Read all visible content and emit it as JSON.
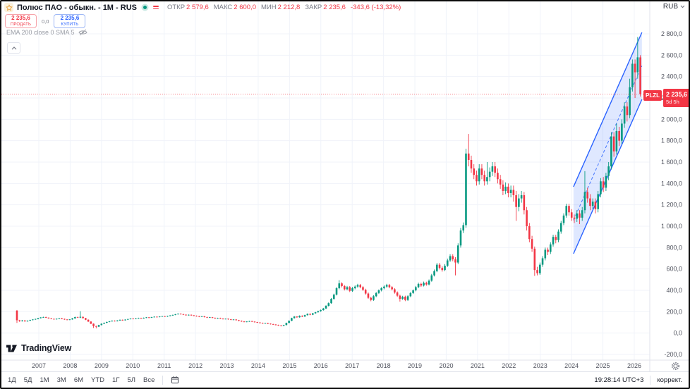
{
  "header": {
    "symbol_title": "Полюс ПАО - обыкн. - 1M - RUS",
    "ohlc": {
      "open_label": "ОТКР",
      "open": "2 579,6",
      "high_label": "МАКС",
      "high": "2 600,0",
      "low_label": "МИН",
      "low": "2 212,8",
      "close_label": "ЗАКР",
      "close": "2 235,6",
      "change": "-343,6 (-13,32%)"
    },
    "sell": {
      "price": "2 235,6",
      "label": "ПРОДАТЬ"
    },
    "spread": "0,0",
    "buy": {
      "price": "2 235,6",
      "label": "КУПИТЬ"
    },
    "indicator": "EMA 200 close 0 SMA 5"
  },
  "axes": {
    "currency": "RUB",
    "price_tick_labels": [
      "2 800,0",
      "2 600,0",
      "2 400,0",
      "2 200,0",
      "2 000,0",
      "1 800,0",
      "1 600,0",
      "1 400,0",
      "1 200,0",
      "1 000,0",
      "800,0",
      "600,0",
      "400,0",
      "200,0",
      "0,0",
      "-200,0"
    ]
  },
  "price_label": {
    "ticker": "PLZL",
    "price": "2 235,6",
    "countdown": "5d 5h"
  },
  "logo": {
    "text": "TradingView"
  },
  "footer": {
    "ranges": [
      "1Д",
      "5Д",
      "1М",
      "3М",
      "6М",
      "YTD",
      "1Г",
      "5Л",
      "Все"
    ],
    "time": "19:28:14 UTC+3",
    "adjust": "коррект."
  },
  "chart_data": {
    "type": "candlestick",
    "symbol": "PLZL",
    "title": "Полюс ПАО - обыкн. - 1M - RUS",
    "timeframe": "1M",
    "currency": "RUB",
    "start_month": "2006-05",
    "y_axis": {
      "min": -200,
      "max": 2800,
      "tick_step": 200,
      "ticks": [
        2800,
        2600,
        2400,
        2200,
        2000,
        1800,
        1600,
        1400,
        1200,
        1000,
        800,
        600,
        400,
        200,
        0,
        -200
      ]
    },
    "x_axis": {
      "years": [
        2007,
        2008,
        2009,
        2010,
        2011,
        2012,
        2013,
        2014,
        2015,
        2016,
        2017,
        2018,
        2019,
        2020,
        2021,
        2022,
        2023,
        2024,
        2025,
        2026
      ]
    },
    "current_price": 2235.6,
    "last_candle": {
      "open": 2579.6,
      "high": 2600.0,
      "low": 2212.8,
      "close": 2235.6,
      "change": -343.6,
      "change_pct": -13.32
    },
    "channel": {
      "style": "parallel-channel",
      "dashed_midline": true,
      "start_index": 210.7,
      "end_index": 236.6,
      "lower_start_price": 743,
      "lower_end_price": 2187,
      "upper_start_price": 1369,
      "upper_end_price": 2813
    },
    "colors": {
      "up": "#089981",
      "down": "#f23645",
      "channel": "#2962ff",
      "channel_fill": "rgba(41,98,255,0.15)",
      "grid": "#f0f3fa",
      "axis_text": "#50535e",
      "separator": "#e0e3eb",
      "current_line": "#f23645",
      "price_label_bg": "#f23645"
    },
    "candles": [
      [
        210,
        216,
        95,
        120
      ],
      [
        120,
        124,
        105,
        112
      ],
      [
        112,
        122,
        108,
        118
      ],
      [
        118,
        121,
        106,
        110
      ],
      [
        110,
        119,
        107,
        116
      ],
      [
        116,
        125,
        113,
        122
      ],
      [
        122,
        130,
        119,
        127
      ],
      [
        127,
        135,
        124,
        132
      ],
      [
        132,
        143,
        129,
        140
      ],
      [
        140,
        149,
        137,
        146
      ],
      [
        146,
        153,
        143,
        150
      ],
      [
        150,
        153,
        141,
        144
      ],
      [
        144,
        147,
        135,
        138
      ],
      [
        138,
        141,
        130,
        133
      ],
      [
        133,
        136,
        126,
        129
      ],
      [
        129,
        137,
        126,
        134
      ],
      [
        134,
        142,
        131,
        139
      ],
      [
        139,
        142,
        130,
        133
      ],
      [
        133,
        136,
        124,
        127
      ],
      [
        127,
        130,
        120,
        123
      ],
      [
        123,
        131,
        120,
        128
      ],
      [
        128,
        141,
        125,
        138
      ],
      [
        138,
        153,
        135,
        150
      ],
      [
        150,
        153,
        141,
        145
      ],
      [
        145,
        205,
        140,
        152
      ],
      [
        152,
        155,
        136,
        140
      ],
      [
        140,
        143,
        121,
        125
      ],
      [
        125,
        128,
        104,
        108
      ],
      [
        108,
        111,
        84,
        88
      ],
      [
        88,
        91,
        48,
        65
      ],
      [
        65,
        70,
        45,
        60
      ],
      [
        60,
        78,
        56,
        75
      ],
      [
        75,
        91,
        72,
        88
      ],
      [
        88,
        99,
        85,
        96
      ],
      [
        96,
        107,
        93,
        104
      ],
      [
        104,
        113,
        101,
        110
      ],
      [
        110,
        119,
        107,
        116
      ],
      [
        116,
        119,
        108,
        112
      ],
      [
        112,
        121,
        109,
        118
      ],
      [
        118,
        127,
        115,
        124
      ],
      [
        124,
        127,
        116,
        120
      ],
      [
        120,
        129,
        117,
        126
      ],
      [
        126,
        134,
        123,
        131
      ],
      [
        131,
        139,
        128,
        136
      ],
      [
        136,
        139,
        129,
        133
      ],
      [
        133,
        140,
        130,
        137
      ],
      [
        137,
        144,
        134,
        141
      ],
      [
        141,
        144,
        134,
        138
      ],
      [
        138,
        146,
        135,
        143
      ],
      [
        143,
        150,
        140,
        147
      ],
      [
        147,
        150,
        140,
        144
      ],
      [
        144,
        152,
        141,
        149
      ],
      [
        149,
        156,
        146,
        153
      ],
      [
        153,
        156,
        146,
        150
      ],
      [
        150,
        158,
        147,
        155
      ],
      [
        155,
        161,
        152,
        158
      ],
      [
        158,
        161,
        151,
        155
      ],
      [
        155,
        163,
        152,
        160
      ],
      [
        160,
        168,
        157,
        165
      ],
      [
        165,
        173,
        162,
        170
      ],
      [
        170,
        179,
        167,
        176
      ],
      [
        176,
        184,
        173,
        181
      ],
      [
        181,
        184,
        173,
        177
      ],
      [
        177,
        180,
        168,
        172
      ],
      [
        172,
        175,
        163,
        167
      ],
      [
        167,
        174,
        164,
        171
      ],
      [
        171,
        174,
        162,
        166
      ],
      [
        166,
        169,
        158,
        162
      ],
      [
        162,
        165,
        154,
        158
      ],
      [
        158,
        161,
        149,
        153
      ],
      [
        153,
        160,
        150,
        157
      ],
      [
        157,
        160,
        146,
        150
      ],
      [
        150,
        153,
        141,
        145
      ],
      [
        145,
        151,
        142,
        148
      ],
      [
        148,
        151,
        139,
        143
      ],
      [
        143,
        146,
        134,
        138
      ],
      [
        138,
        144,
        135,
        141
      ],
      [
        141,
        144,
        132,
        136
      ],
      [
        136,
        139,
        127,
        131
      ],
      [
        131,
        137,
        128,
        134
      ],
      [
        134,
        137,
        125,
        129
      ],
      [
        129,
        132,
        120,
        124
      ],
      [
        124,
        130,
        121,
        127
      ],
      [
        127,
        130,
        117,
        121
      ],
      [
        121,
        124,
        111,
        115
      ],
      [
        115,
        118,
        105,
        109
      ],
      [
        109,
        112,
        100,
        104
      ],
      [
        104,
        111,
        101,
        108
      ],
      [
        108,
        115,
        105,
        112
      ],
      [
        112,
        115,
        103,
        107
      ],
      [
        107,
        110,
        98,
        102
      ],
      [
        102,
        105,
        95,
        99
      ],
      [
        99,
        102,
        91,
        95
      ],
      [
        95,
        98,
        87,
        91
      ],
      [
        91,
        97,
        88,
        94
      ],
      [
        94,
        97,
        84,
        88
      ],
      [
        88,
        91,
        80,
        84
      ],
      [
        84,
        87,
        76,
        80
      ],
      [
        80,
        83,
        72,
        76
      ],
      [
        76,
        79,
        68,
        72
      ],
      [
        72,
        75,
        63,
        68
      ],
      [
        68,
        78,
        65,
        75
      ],
      [
        75,
        98,
        72,
        95
      ],
      [
        95,
        119,
        92,
        115
      ],
      [
        115,
        144,
        112,
        140
      ],
      [
        140,
        159,
        136,
        155
      ],
      [
        155,
        158,
        143,
        148
      ],
      [
        148,
        166,
        144,
        162
      ],
      [
        162,
        166,
        150,
        155
      ],
      [
        155,
        172,
        151,
        168
      ],
      [
        168,
        184,
        164,
        180
      ],
      [
        180,
        184,
        167,
        172
      ],
      [
        172,
        189,
        168,
        185
      ],
      [
        185,
        199,
        181,
        195
      ],
      [
        195,
        210,
        191,
        205
      ],
      [
        205,
        220,
        200,
        215
      ],
      [
        215,
        236,
        210,
        230
      ],
      [
        230,
        261,
        225,
        255
      ],
      [
        255,
        287,
        249,
        280
      ],
      [
        280,
        328,
        274,
        320
      ],
      [
        320,
        369,
        313,
        360
      ],
      [
        360,
        430,
        352,
        420
      ],
      [
        420,
        495,
        410,
        465
      ],
      [
        465,
        475,
        428,
        440
      ],
      [
        440,
        450,
        399,
        410
      ],
      [
        410,
        441,
        401,
        430
      ],
      [
        430,
        440,
        384,
        395
      ],
      [
        395,
        431,
        386,
        420
      ],
      [
        420,
        446,
        410,
        435
      ],
      [
        435,
        461,
        425,
        450
      ],
      [
        450,
        460,
        419,
        430
      ],
      [
        430,
        440,
        394,
        405
      ],
      [
        405,
        415,
        359,
        370
      ],
      [
        370,
        380,
        320,
        330
      ],
      [
        330,
        340,
        298,
        310
      ],
      [
        310,
        354,
        302,
        345
      ],
      [
        345,
        384,
        336,
        375
      ],
      [
        375,
        409,
        366,
        400
      ],
      [
        400,
        430,
        390,
        420
      ],
      [
        420,
        446,
        410,
        435
      ],
      [
        435,
        461,
        424,
        450
      ],
      [
        450,
        460,
        419,
        430
      ],
      [
        430,
        440,
        399,
        410
      ],
      [
        410,
        420,
        369,
        380
      ],
      [
        380,
        390,
        339,
        350
      ],
      [
        350,
        360,
        295,
        320
      ],
      [
        320,
        349,
        311,
        340
      ],
      [
        340,
        350,
        299,
        310
      ],
      [
        310,
        354,
        301,
        345
      ],
      [
        345,
        384,
        336,
        375
      ],
      [
        375,
        409,
        366,
        400
      ],
      [
        400,
        441,
        391,
        430
      ],
      [
        430,
        472,
        420,
        460
      ],
      [
        460,
        471,
        433,
        445
      ],
      [
        445,
        482,
        436,
        470
      ],
      [
        470,
        481,
        443,
        455
      ],
      [
        455,
        502,
        446,
        490
      ],
      [
        490,
        554,
        481,
        540
      ],
      [
        540,
        595,
        530,
        580
      ],
      [
        580,
        656,
        570,
        640
      ],
      [
        640,
        656,
        595,
        610
      ],
      [
        610,
        625,
        575,
        590
      ],
      [
        590,
        646,
        580,
        630
      ],
      [
        630,
        697,
        619,
        680
      ],
      [
        680,
        738,
        666,
        720
      ],
      [
        720,
        738,
        672,
        690
      ],
      [
        690,
        710,
        540,
        660
      ],
      [
        660,
        840,
        645,
        820
      ],
      [
        820,
        984,
        800,
        960
      ],
      [
        960,
        1035,
        936,
        1010
      ],
      [
        1010,
        1725,
        985,
        1680
      ],
      [
        1680,
        1863,
        1560,
        1620
      ],
      [
        1620,
        1660,
        1500,
        1540
      ],
      [
        1540,
        1580,
        1440,
        1480
      ],
      [
        1480,
        1520,
        1380,
        1420
      ],
      [
        1420,
        1580,
        1390,
        1540
      ],
      [
        1540,
        1580,
        1440,
        1480
      ],
      [
        1480,
        1520,
        1380,
        1420
      ],
      [
        1420,
        1600,
        1390,
        1460
      ],
      [
        1460,
        1550,
        1420,
        1510
      ],
      [
        1510,
        1600,
        1470,
        1560
      ],
      [
        1560,
        1600,
        1460,
        1500
      ],
      [
        1500,
        1540,
        1400,
        1440
      ],
      [
        1440,
        1480,
        1350,
        1390
      ],
      [
        1390,
        1430,
        1290,
        1330
      ],
      [
        1330,
        1410,
        1300,
        1370
      ],
      [
        1370,
        1400,
        1270,
        1310
      ],
      [
        1310,
        1380,
        1270,
        1340
      ],
      [
        1340,
        1380,
        1230,
        1290
      ],
      [
        1290,
        1330,
        1050,
        1180
      ],
      [
        1180,
        1300,
        1140,
        1260
      ],
      [
        1260,
        1330,
        1220,
        1290
      ],
      [
        1290,
        1320,
        1110,
        1150
      ],
      [
        1150,
        1180,
        960,
        1000
      ],
      [
        1000,
        1030,
        850,
        880
      ],
      [
        880,
        910,
        760,
        790
      ],
      [
        790,
        810,
        535,
        590
      ],
      [
        590,
        620,
        540,
        560
      ],
      [
        560,
        660,
        545,
        640
      ],
      [
        640,
        720,
        620,
        700
      ],
      [
        700,
        800,
        680,
        780
      ],
      [
        780,
        800,
        730,
        760
      ],
      [
        760,
        850,
        740,
        830
      ],
      [
        830,
        920,
        810,
        900
      ],
      [
        900,
        920,
        840,
        870
      ],
      [
        870,
        970,
        850,
        950
      ],
      [
        950,
        1050,
        930,
        1030
      ],
      [
        1030,
        1120,
        1010,
        1100
      ],
      [
        1100,
        1210,
        1080,
        1190
      ],
      [
        1190,
        1210,
        1100,
        1130
      ],
      [
        1130,
        1160,
        1050,
        1080
      ],
      [
        1080,
        1110,
        1030,
        1070
      ],
      [
        1070,
        1150,
        1040,
        1120
      ],
      [
        1120,
        1150,
        1020,
        1080
      ],
      [
        1080,
        1180,
        1050,
        1150
      ],
      [
        1150,
        1515,
        1120,
        1320
      ],
      [
        1320,
        1360,
        1220,
        1260
      ],
      [
        1260,
        1300,
        1150,
        1190
      ],
      [
        1190,
        1260,
        1160,
        1230
      ],
      [
        1230,
        1260,
        1120,
        1160
      ],
      [
        1160,
        1330,
        1130,
        1300
      ],
      [
        1300,
        1450,
        1270,
        1420
      ],
      [
        1420,
        1460,
        1320,
        1360
      ],
      [
        1360,
        1500,
        1330,
        1470
      ],
      [
        1470,
        1600,
        1430,
        1560
      ],
      [
        1560,
        1880,
        1530,
        1840
      ],
      [
        1840,
        1880,
        1650,
        1700
      ],
      [
        1700,
        1960,
        1670,
        1890
      ],
      [
        1890,
        1930,
        1750,
        1800
      ],
      [
        1800,
        2000,
        1770,
        1960
      ],
      [
        1960,
        2160,
        1920,
        2120
      ],
      [
        2120,
        2160,
        1980,
        2040
      ],
      [
        2040,
        2380,
        2010,
        2300
      ],
      [
        2300,
        2560,
        2260,
        2520
      ],
      [
        2520,
        2560,
        2200,
        2440
      ],
      [
        2440,
        2770,
        2380,
        2580
      ],
      [
        2579.6,
        2600,
        2212.8,
        2235.6
      ]
    ]
  }
}
